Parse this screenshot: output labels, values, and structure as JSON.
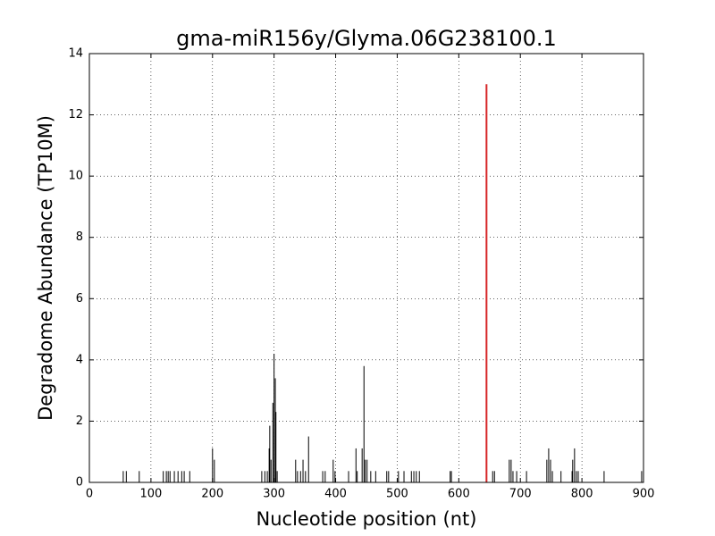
{
  "chart_data": {
    "type": "stem",
    "title": "gma-miR156y/Glyma.06G238100.1",
    "xlabel": "Nucleotide position (nt)",
    "ylabel": "Degradome Abundance (TP10M)",
    "xlim": [
      0,
      900
    ],
    "ylim": [
      0,
      14
    ],
    "xticks": [
      0,
      100,
      200,
      300,
      400,
      500,
      600,
      700,
      800,
      900
    ],
    "yticks": [
      0,
      2,
      4,
      6,
      8,
      10,
      12,
      14
    ],
    "grid": true,
    "color": "#000000",
    "x": [
      55,
      60,
      81,
      120,
      125,
      128,
      131,
      138,
      144,
      150,
      154,
      163,
      200,
      203,
      280,
      285,
      289,
      292,
      293,
      295,
      298,
      300,
      302,
      303,
      305,
      335,
      338,
      343,
      347,
      351,
      356,
      379,
      383,
      396,
      399,
      421,
      433,
      435,
      443,
      446,
      448,
      451,
      457,
      465,
      483,
      486,
      502,
      511,
      523,
      527,
      531,
      536,
      586,
      588,
      655,
      658,
      682,
      685,
      688,
      694,
      710,
      743,
      746,
      749,
      752,
      766,
      784,
      785,
      788,
      791,
      794,
      836,
      897
    ],
    "values": [
      0.37,
      0.37,
      0.37,
      0.37,
      0.37,
      0.37,
      0.37,
      0.37,
      0.37,
      0.37,
      0.37,
      0.37,
      1.11,
      0.74,
      0.37,
      0.37,
      0.37,
      1.11,
      1.85,
      0.74,
      2.6,
      4.2,
      3.4,
      2.3,
      0.37,
      0.74,
      0.37,
      0.37,
      0.74,
      0.37,
      1.5,
      0.37,
      0.37,
      0.74,
      0.37,
      0.37,
      1.11,
      0.37,
      1.11,
      3.8,
      0.74,
      0.74,
      0.37,
      0.37,
      0.37,
      0.37,
      0.37,
      0.37,
      0.37,
      0.37,
      0.37,
      0.37,
      0.37,
      0.37,
      0.37,
      0.37,
      0.74,
      0.74,
      0.37,
      0.37,
      0.37,
      0.74,
      1.11,
      0.74,
      0.37,
      0.37,
      0.37,
      0.74,
      1.11,
      0.37,
      0.37,
      0.37,
      0.37
    ],
    "highlight": {
      "x": 645,
      "value": 13,
      "color": "#d62728"
    }
  }
}
